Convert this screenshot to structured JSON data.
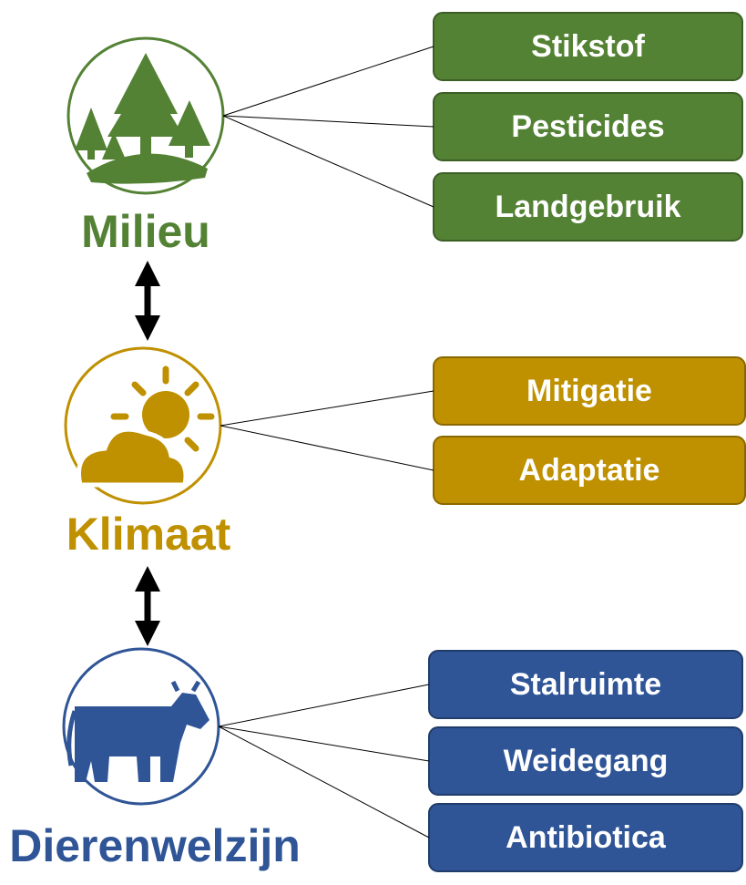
{
  "groups": [
    {
      "label": "Milieu",
      "items": [
        "Stikstof",
        "Pesticides",
        "Landgebruik"
      ]
    },
    {
      "label": "Klimaat",
      "items": [
        "Mitigatie",
        "Adaptatie"
      ]
    },
    {
      "label": "Dierenwelzijn",
      "items": [
        "Stalruimte",
        "Weidegang",
        "Antibiotica"
      ]
    }
  ]
}
